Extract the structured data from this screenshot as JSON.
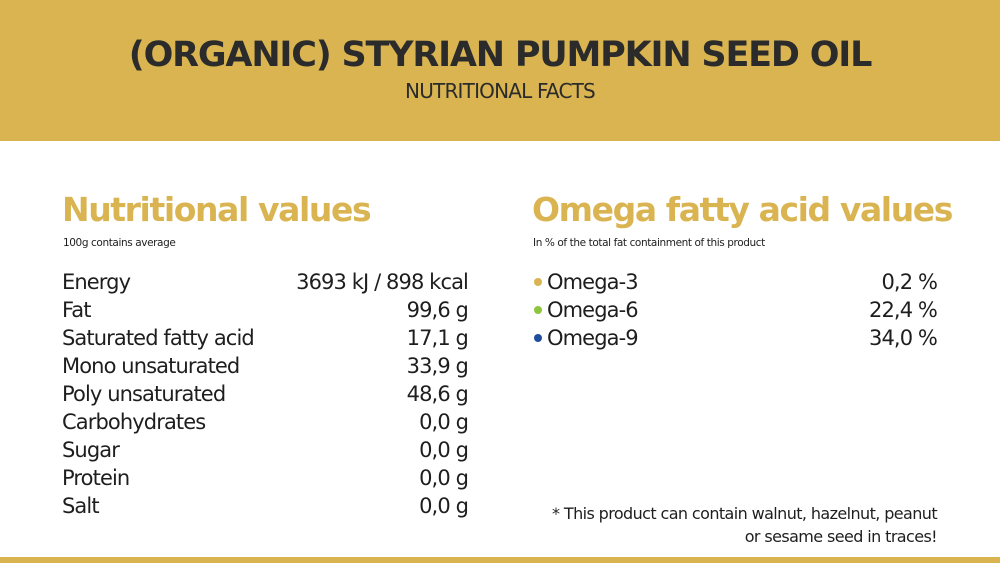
{
  "header": {
    "title": "(ORGANIC) STYRIAN PUMPKIN SEED OIL",
    "subtitle": "NUTRITIONAL FACTS"
  },
  "nutrition": {
    "heading": "Nutritional values",
    "note": "100g contains average",
    "rows": [
      {
        "label": "Energy",
        "value": "3693 kJ / 898 kcal"
      },
      {
        "label": "Fat",
        "value": "99,6 g"
      },
      {
        "label": "Saturated fatty acid",
        "value": "17,1 g"
      },
      {
        "label": "Mono unsaturated",
        "value": "33,9 g"
      },
      {
        "label": "Poly unsaturated",
        "value": "48,6 g"
      },
      {
        "label": "Carbohydrates",
        "value": "0,0 g"
      },
      {
        "label": "Sugar",
        "value": "0,0 g"
      },
      {
        "label": "Protein",
        "value": "0,0 g"
      },
      {
        "label": "Salt",
        "value": "0,0 g"
      }
    ]
  },
  "omega": {
    "heading": "Omega fatty acid values",
    "note": "In % of the total fat containment of this product",
    "rows": [
      {
        "label": "Omega-3",
        "value": "0,2 %",
        "dot_color": "#d9b451"
      },
      {
        "label": "Omega-6",
        "value": "22,4 %",
        "dot_color": "#8cc63f"
      },
      {
        "label": "Omega-9",
        "value": "34,0 %",
        "dot_color": "#1f4e9c"
      }
    ]
  },
  "footnote": {
    "line1": "* This product can contain walnut, hazelnut, peanut",
    "line2": "or sesame seed in traces!"
  },
  "colors": {
    "accent": "#d9b451",
    "text": "#1e1e1e"
  }
}
